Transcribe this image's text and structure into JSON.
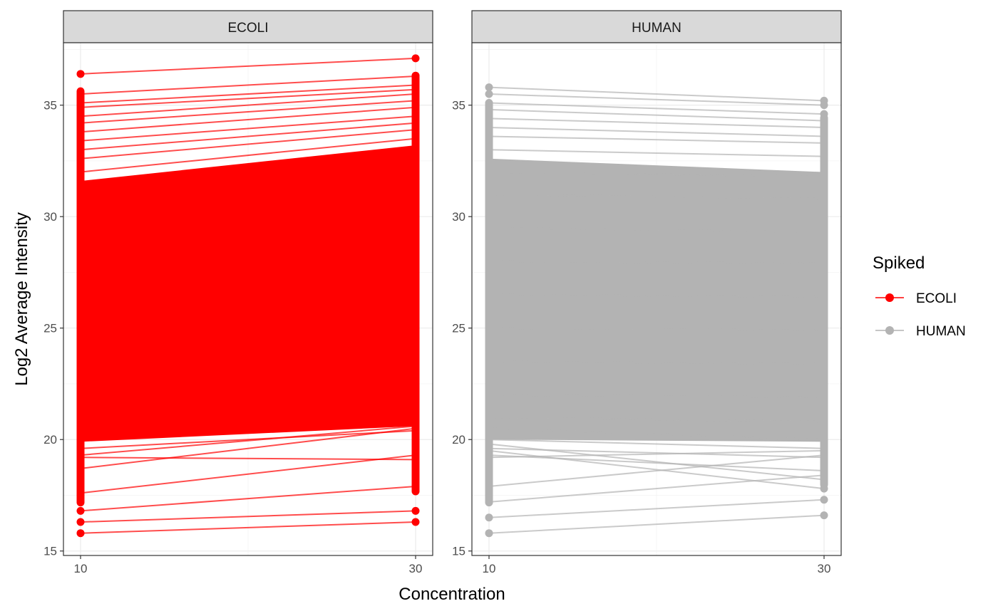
{
  "chart_data": {
    "type": "line",
    "ylabel": "Log2 Average Intensity",
    "xlabel": "Concentration",
    "x": [
      10,
      30
    ],
    "ylim": [
      14.8,
      37.8
    ],
    "yticks": [
      15,
      20,
      25,
      30,
      35
    ],
    "grid": true,
    "legend": {
      "title": "Spiked",
      "position": "right",
      "entries": [
        {
          "label": "ECOLI",
          "color": "#ff0000"
        },
        {
          "label": "HUMAN",
          "color": "#b3b3b3"
        }
      ]
    },
    "panels": [
      {
        "strip": "ECOLI",
        "color": "#ff0000",
        "trend": "up",
        "y_range_at_10": [
          15.8,
          36.4
        ],
        "y_range_at_30": [
          16.3,
          37.1
        ],
        "series": [
          {
            "values": [
              36.4,
              37.1
            ]
          },
          {
            "values": [
              35.5,
              36.3
            ]
          },
          {
            "values": [
              35.1,
              35.9
            ]
          },
          {
            "values": [
              34.9,
              35.7
            ]
          },
          {
            "values": [
              34.5,
              35.5
            ]
          },
          {
            "values": [
              34.2,
              35.2
            ]
          },
          {
            "values": [
              33.8,
              34.9
            ]
          },
          {
            "values": [
              33.4,
              34.5
            ]
          },
          {
            "values": [
              33.0,
              34.2
            ]
          },
          {
            "values": [
              32.6,
              33.9
            ]
          },
          {
            "values": [
              32.0,
              33.5
            ]
          },
          {
            "values": [
              31.5,
              33.0
            ]
          },
          {
            "values": [
              30.5,
              32.2
            ]
          },
          {
            "values": [
              29.5,
              31.4
            ]
          },
          {
            "values": [
              28.0,
              30.1
            ]
          },
          {
            "values": [
              26.5,
              28.8
            ]
          },
          {
            "values": [
              25.0,
              27.5
            ]
          },
          {
            "values": [
              23.5,
              26.0
            ]
          },
          {
            "values": [
              22.5,
              24.8
            ]
          },
          {
            "values": [
              21.5,
              23.5
            ]
          },
          {
            "values": [
              20.8,
              22.2
            ]
          },
          {
            "values": [
              20.3,
              21.4
            ]
          },
          {
            "values": [
              20.0,
              20.8
            ]
          },
          {
            "values": [
              19.6,
              20.4
            ]
          },
          {
            "values": [
              19.3,
              20.6
            ]
          },
          {
            "values": [
              19.2,
              19.1
            ]
          },
          {
            "values": [
              18.7,
              20.5
            ]
          },
          {
            "values": [
              17.6,
              19.3
            ]
          },
          {
            "values": [
              16.8,
              17.9
            ]
          },
          {
            "values": [
              16.3,
              16.8
            ]
          },
          {
            "values": [
              15.8,
              16.3
            ]
          }
        ]
      },
      {
        "strip": "HUMAN",
        "color": "#b3b3b3",
        "trend": "flat",
        "y_range_at_10": [
          15.8,
          35.8
        ],
        "y_range_at_30": [
          16.6,
          35.2
        ],
        "series": [
          {
            "values": [
              35.8,
              35.2
            ]
          },
          {
            "values": [
              35.5,
              35.0
            ]
          },
          {
            "values": [
              35.1,
              34.6
            ]
          },
          {
            "values": [
              34.8,
              34.3
            ]
          },
          {
            "values": [
              34.4,
              34.0
            ]
          },
          {
            "values": [
              34.0,
              33.6
            ]
          },
          {
            "values": [
              33.6,
              33.3
            ]
          },
          {
            "values": [
              33.0,
              32.7
            ]
          },
          {
            "values": [
              32.0,
              31.8
            ]
          },
          {
            "values": [
              31.0,
              30.8
            ]
          },
          {
            "values": [
              29.5,
              29.3
            ]
          },
          {
            "values": [
              28.0,
              27.9
            ]
          },
          {
            "values": [
              26.5,
              26.4
            ]
          },
          {
            "values": [
              25.0,
              24.9
            ]
          },
          {
            "values": [
              23.5,
              23.4
            ]
          },
          {
            "values": [
              22.0,
              21.9
            ]
          },
          {
            "values": [
              21.0,
              20.8
            ]
          },
          {
            "values": [
              20.5,
              20.0
            ]
          },
          {
            "values": [
              20.0,
              19.6
            ]
          },
          {
            "values": [
              19.6,
              19.2
            ]
          },
          {
            "values": [
              19.3,
              18.6
            ]
          },
          {
            "values": [
              19.2,
              19.5
            ]
          },
          {
            "values": [
              19.8,
              18.2
            ]
          },
          {
            "values": [
              19.5,
              17.8
            ]
          },
          {
            "values": [
              17.9,
              19.3
            ]
          },
          {
            "values": [
              17.2,
              18.4
            ]
          },
          {
            "values": [
              16.5,
              17.3
            ]
          },
          {
            "values": [
              15.8,
              16.6
            ]
          }
        ]
      }
    ]
  }
}
